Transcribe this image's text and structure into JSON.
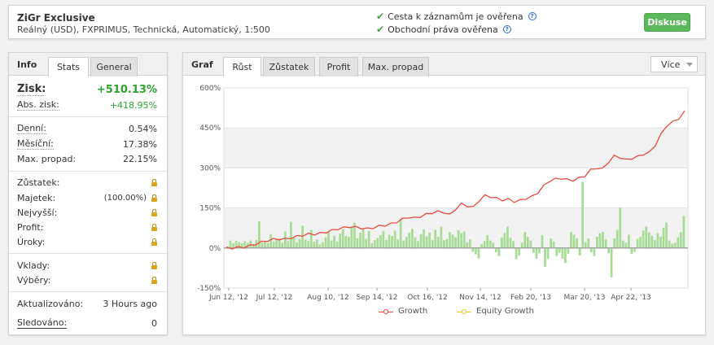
{
  "header": {
    "name": "ZiGr Exclusive",
    "desc": "Reálný (USD), FXPRIMUS, Technická, Automatický, 1:500",
    "verify_track": "Cesta k záznamům je ověřena",
    "verify_rights": "Obchodní práva ověřena",
    "discuss_label": "Diskuse"
  },
  "left": {
    "title": "Info",
    "tabs": [
      "Stats",
      "General"
    ],
    "gain_label": "Zisk:",
    "gain_value": "+510.13%",
    "abs_label": "Abs. zisk:",
    "abs_value": "+418.95%",
    "daily_label": "Denní:",
    "daily_value": "0.54%",
    "monthly_label": "Měsíční:",
    "monthly_value": "17.38%",
    "dd_label": "Max. propad:",
    "dd_value": "22.15%",
    "balance_label": "Zůstatek:",
    "equity_label": "Majetek:",
    "equity_pct": "(100.00%)",
    "highest_label": "Nejvyšší:",
    "profit_label": "Profit:",
    "interest_label": "Úroky:",
    "deposits_label": "Vklady:",
    "withdrawals_label": "Výběry:",
    "updated_label": "Aktualizováno:",
    "updated_value": "3 Hours ago",
    "tracking_label": "Sledováno:",
    "tracking_value": "0"
  },
  "right": {
    "title": "Graf",
    "tabs": [
      "Růst",
      "Zůstatek",
      "Profit",
      "Max. propad"
    ],
    "more_label": "Více"
  },
  "colors": {
    "growth": "#e74c3c",
    "equity": "#f0c419",
    "bars": "#a8dc96",
    "button": "#5cb85c"
  },
  "chart_data": {
    "type": "line",
    "ylim": [
      -150,
      600
    ],
    "yticks": [
      "600%",
      "450%",
      "300%",
      "150%",
      "0%",
      "-150%"
    ],
    "ytick_values": [
      600,
      450,
      300,
      150,
      0,
      -150
    ],
    "xticks": [
      "Jun 12, '12",
      "Jul 12, '12",
      "Aug 10, '12",
      "Sep 14, '12",
      "Oct 16, '12",
      "Nov 14, '12",
      "Feb 20, '13",
      "Mar 20, '13",
      "Apr 22, '13"
    ],
    "series": [
      {
        "name": "Growth",
        "values": [
          0,
          0,
          2,
          4,
          8,
          15,
          22,
          28,
          32,
          34,
          33,
          38,
          43,
          48,
          52,
          52,
          55,
          60,
          66,
          72,
          76,
          80,
          78,
          75,
          72,
          76,
          82,
          85,
          90,
          98,
          108,
          116,
          112,
          118,
          126,
          132,
          136,
          134,
          124,
          146,
          165,
          158,
          152,
          178,
          196,
          192,
          186,
          180,
          182,
          174,
          178,
          186,
          192,
          208,
          232,
          252,
          258,
          262,
          256,
          254,
          262,
          270,
          292,
          300,
          296,
          322,
          344,
          340,
          330,
          336,
          342,
          352,
          358,
          386,
          426,
          460,
          472,
          486,
          510
        ]
      },
      {
        "name": "Equity Growth",
        "values": []
      }
    ],
    "bars": [
      6,
      28,
      18,
      27,
      22,
      18,
      25,
      20,
      28,
      15,
      30,
      100,
      20,
      26,
      18,
      52,
      24,
      30,
      35,
      20,
      62,
      26,
      98,
      38,
      21,
      34,
      84,
      32,
      26,
      68,
      24,
      32,
      14,
      22,
      40,
      60,
      28,
      46,
      24,
      54,
      70,
      45,
      42,
      76,
      95,
      36,
      58,
      72,
      34,
      64,
      18,
      30,
      38,
      48,
      64,
      30,
      50,
      45,
      65,
      33,
      110,
      28,
      42,
      58,
      72,
      40,
      26,
      52,
      70,
      44,
      58,
      30,
      68,
      42,
      80,
      30,
      34,
      60,
      50,
      40,
      66,
      55,
      62,
      22,
      32,
      -14,
      -24,
      -40,
      14,
      26,
      48,
      28,
      20,
      -16,
      -30,
      40,
      56,
      80,
      38,
      26,
      -42,
      -28,
      20,
      60,
      42,
      28,
      -18,
      -40,
      -20,
      48,
      -70,
      -40,
      36,
      24,
      -30,
      -18,
      -40,
      -56,
      -22,
      60,
      50,
      36,
      -28,
      248,
      22,
      36,
      -16,
      -30,
      42,
      56,
      60,
      32,
      -20,
      -110,
      36,
      68,
      152,
      28,
      20,
      50,
      -22,
      -14,
      34,
      42,
      66,
      80,
      58,
      46,
      30,
      56,
      42,
      76,
      96,
      28,
      16,
      20,
      40,
      60,
      120
    ]
  }
}
